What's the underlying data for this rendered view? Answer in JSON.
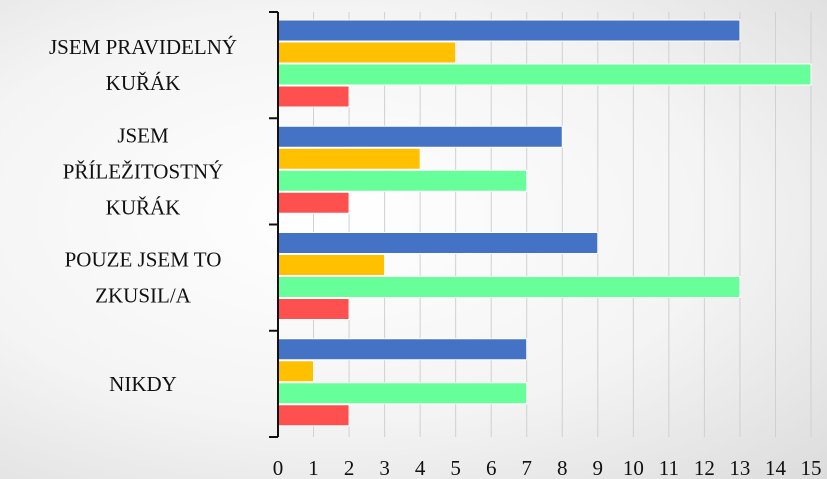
{
  "chart_data": {
    "type": "bar",
    "orientation": "horizontal",
    "categories": [
      [
        "JSEM PRAVIDELNÝ",
        "KUŘÁK"
      ],
      [
        "JSEM",
        "PŘÍLEŽITOSTNÝ",
        "KUŘÁK"
      ],
      [
        "POUZE JSEM TO",
        "ZKUSIL/A"
      ],
      [
        "NIKDY"
      ]
    ],
    "series": [
      {
        "color": "#4472c4",
        "values": [
          13,
          8,
          9,
          7
        ]
      },
      {
        "color": "#ffc000",
        "values": [
          5,
          4,
          3,
          1
        ]
      },
      {
        "color": "#66ff99",
        "values": [
          15,
          7,
          13,
          7
        ]
      },
      {
        "color": "#ff5050",
        "values": [
          2,
          2,
          2,
          2
        ]
      }
    ],
    "xlim": [
      0,
      15
    ],
    "x_ticks": [
      0,
      1,
      2,
      3,
      4,
      5,
      6,
      7,
      8,
      9,
      10,
      11,
      12,
      13,
      14,
      15
    ],
    "grid": true,
    "legend": "none"
  }
}
